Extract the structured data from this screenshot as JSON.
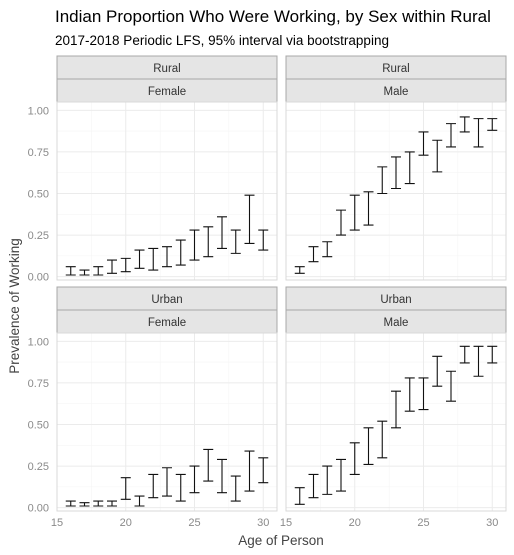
{
  "chart": {
    "title": "Indian Proportion Who Were Working, by Sex within Rural",
    "subtitle": "2017-2018 Periodic LFS, 95% interval via bootstrapping",
    "xlabel": "Age of Person",
    "ylabel": "Prevalence of Working",
    "x_ticks": [
      "15",
      "20",
      "25",
      "30"
    ],
    "y_ticks": [
      "0.00",
      "0.25",
      "0.50",
      "0.75",
      "1.00"
    ]
  },
  "chart_data": {
    "type": "errorbar",
    "xlim": [
      15,
      31
    ],
    "ylim": [
      -0.02,
      1.05
    ],
    "x_ticks": [
      15,
      20,
      25,
      30
    ],
    "y_ticks": [
      0,
      0.25,
      0.5,
      0.75,
      1.0
    ],
    "grid": true,
    "panels": [
      {
        "row": "Rural",
        "col": "Female",
        "points": [
          {
            "x": 16,
            "lo": 0.01,
            "hi": 0.06
          },
          {
            "x": 17,
            "lo": 0.01,
            "hi": 0.04
          },
          {
            "x": 18,
            "lo": 0.01,
            "hi": 0.06
          },
          {
            "x": 19,
            "lo": 0.02,
            "hi": 0.1
          },
          {
            "x": 20,
            "lo": 0.03,
            "hi": 0.11
          },
          {
            "x": 21,
            "lo": 0.05,
            "hi": 0.16
          },
          {
            "x": 22,
            "lo": 0.04,
            "hi": 0.17
          },
          {
            "x": 23,
            "lo": 0.06,
            "hi": 0.18
          },
          {
            "x": 24,
            "lo": 0.07,
            "hi": 0.22
          },
          {
            "x": 25,
            "lo": 0.1,
            "hi": 0.28
          },
          {
            "x": 26,
            "lo": 0.12,
            "hi": 0.3
          },
          {
            "x": 27,
            "lo": 0.17,
            "hi": 0.36
          },
          {
            "x": 28,
            "lo": 0.14,
            "hi": 0.28
          },
          {
            "x": 29,
            "lo": 0.2,
            "hi": 0.49
          },
          {
            "x": 30,
            "lo": 0.16,
            "hi": 0.28
          }
        ]
      },
      {
        "row": "Rural",
        "col": "Male",
        "points": [
          {
            "x": 16,
            "lo": 0.02,
            "hi": 0.06
          },
          {
            "x": 17,
            "lo": 0.09,
            "hi": 0.18
          },
          {
            "x": 18,
            "lo": 0.12,
            "hi": 0.21
          },
          {
            "x": 19,
            "lo": 0.25,
            "hi": 0.4
          },
          {
            "x": 20,
            "lo": 0.28,
            "hi": 0.49
          },
          {
            "x": 21,
            "lo": 0.31,
            "hi": 0.51
          },
          {
            "x": 22,
            "lo": 0.5,
            "hi": 0.66
          },
          {
            "x": 23,
            "lo": 0.53,
            "hi": 0.72
          },
          {
            "x": 24,
            "lo": 0.56,
            "hi": 0.75
          },
          {
            "x": 25,
            "lo": 0.73,
            "hi": 0.87
          },
          {
            "x": 26,
            "lo": 0.63,
            "hi": 0.82
          },
          {
            "x": 27,
            "lo": 0.78,
            "hi": 0.92
          },
          {
            "x": 28,
            "lo": 0.87,
            "hi": 0.96
          },
          {
            "x": 29,
            "lo": 0.78,
            "hi": 0.95
          },
          {
            "x": 30,
            "lo": 0.88,
            "hi": 0.95
          }
        ]
      },
      {
        "row": "Urban",
        "col": "Female",
        "points": [
          {
            "x": 16,
            "lo": 0.01,
            "hi": 0.04
          },
          {
            "x": 17,
            "lo": 0.01,
            "hi": 0.03
          },
          {
            "x": 18,
            "lo": 0.01,
            "hi": 0.04
          },
          {
            "x": 19,
            "lo": 0.01,
            "hi": 0.04
          },
          {
            "x": 20,
            "lo": 0.05,
            "hi": 0.18
          },
          {
            "x": 21,
            "lo": 0.01,
            "hi": 0.07
          },
          {
            "x": 22,
            "lo": 0.06,
            "hi": 0.2
          },
          {
            "x": 23,
            "lo": 0.07,
            "hi": 0.24
          },
          {
            "x": 24,
            "lo": 0.04,
            "hi": 0.2
          },
          {
            "x": 25,
            "lo": 0.09,
            "hi": 0.25
          },
          {
            "x": 26,
            "lo": 0.16,
            "hi": 0.35
          },
          {
            "x": 27,
            "lo": 0.09,
            "hi": 0.29
          },
          {
            "x": 28,
            "lo": 0.04,
            "hi": 0.19
          },
          {
            "x": 29,
            "lo": 0.1,
            "hi": 0.34
          },
          {
            "x": 30,
            "lo": 0.15,
            "hi": 0.3
          }
        ]
      },
      {
        "row": "Urban",
        "col": "Male",
        "points": [
          {
            "x": 16,
            "lo": 0.02,
            "hi": 0.12
          },
          {
            "x": 17,
            "lo": 0.06,
            "hi": 0.2
          },
          {
            "x": 18,
            "lo": 0.08,
            "hi": 0.25
          },
          {
            "x": 19,
            "lo": 0.1,
            "hi": 0.29
          },
          {
            "x": 20,
            "lo": 0.2,
            "hi": 0.39
          },
          {
            "x": 21,
            "lo": 0.26,
            "hi": 0.48
          },
          {
            "x": 22,
            "lo": 0.3,
            "hi": 0.52
          },
          {
            "x": 23,
            "lo": 0.48,
            "hi": 0.7
          },
          {
            "x": 24,
            "lo": 0.58,
            "hi": 0.78
          },
          {
            "x": 25,
            "lo": 0.59,
            "hi": 0.78
          },
          {
            "x": 26,
            "lo": 0.73,
            "hi": 0.91
          },
          {
            "x": 27,
            "lo": 0.64,
            "hi": 0.82
          },
          {
            "x": 28,
            "lo": 0.87,
            "hi": 0.97
          },
          {
            "x": 29,
            "lo": 0.79,
            "hi": 0.97
          },
          {
            "x": 30,
            "lo": 0.87,
            "hi": 0.97
          }
        ]
      }
    ]
  }
}
